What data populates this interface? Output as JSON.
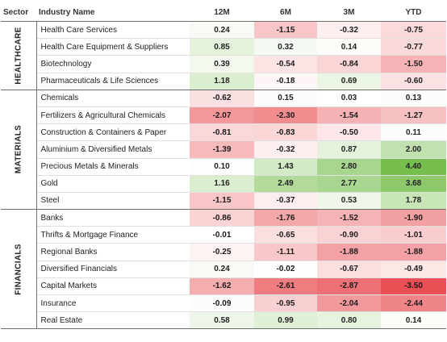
{
  "headers": {
    "sector": "Sector",
    "industry": "Industry Name",
    "m12": "12M",
    "m6": "6M",
    "m3": "3M",
    "ytd": "YTD"
  },
  "sectors": [
    {
      "name": "HEALTHCARE",
      "rows": [
        {
          "name": "Health Care Services",
          "values": [
            0.24,
            -1.15,
            -0.32,
            -0.75
          ]
        },
        {
          "name": "Health Care Equipment & Suppliers",
          "values": [
            0.85,
            0.32,
            0.14,
            -0.77
          ]
        },
        {
          "name": "Biotechnology",
          "values": [
            0.39,
            -0.54,
            -0.84,
            -1.5
          ]
        },
        {
          "name": "Pharmaceuticals & Life Sciences",
          "values": [
            1.18,
            -0.18,
            0.69,
            -0.6
          ]
        }
      ]
    },
    {
      "name": "MATERIALS",
      "rows": [
        {
          "name": "Chemicals",
          "values": [
            -0.62,
            0.15,
            0.03,
            0.13
          ]
        },
        {
          "name": "Fertilizers & Agricultural Chemicals",
          "values": [
            -2.07,
            -2.3,
            -1.54,
            -1.27
          ]
        },
        {
          "name": "Construction & Containers & Paper",
          "values": [
            -0.81,
            -0.83,
            -0.5,
            0.11
          ]
        },
        {
          "name": "Aluminium & Diversified Metals",
          "values": [
            -1.39,
            -0.32,
            0.87,
            2.0
          ]
        },
        {
          "name": "Precious Metals & Minerals",
          "values": [
            0.1,
            1.43,
            2.8,
            4.4
          ]
        },
        {
          "name": "Gold",
          "values": [
            1.16,
            2.49,
            2.77,
            3.68
          ]
        },
        {
          "name": "Steel",
          "values": [
            -1.15,
            -0.37,
            0.53,
            1.78
          ]
        }
      ]
    },
    {
      "name": "FINANCIALS",
      "rows": [
        {
          "name": "Banks",
          "values": [
            -0.86,
            -1.76,
            -1.52,
            -1.9
          ]
        },
        {
          "name": "Thrifts & Mortgage Finance",
          "values": [
            -0.01,
            -0.65,
            -0.9,
            -1.01
          ]
        },
        {
          "name": "Regional Banks",
          "values": [
            -0.25,
            -1.11,
            -1.88,
            -1.88
          ]
        },
        {
          "name": "Diversified Financials",
          "values": [
            0.24,
            -0.02,
            -0.67,
            -0.49
          ]
        },
        {
          "name": "Capital Markets",
          "values": [
            -1.62,
            -2.61,
            -2.87,
            -3.5
          ]
        },
        {
          "name": "Insurance",
          "values": [
            -0.09,
            -0.95,
            -2.04,
            -2.44
          ]
        },
        {
          "name": "Real Estate",
          "values": [
            0.58,
            0.99,
            0.8,
            0.14
          ]
        }
      ]
    }
  ],
  "colors": {
    "negative": "#e8474c",
    "positive": "#6fbb45",
    "neutral": "#ffffff",
    "text": "#222222"
  }
}
